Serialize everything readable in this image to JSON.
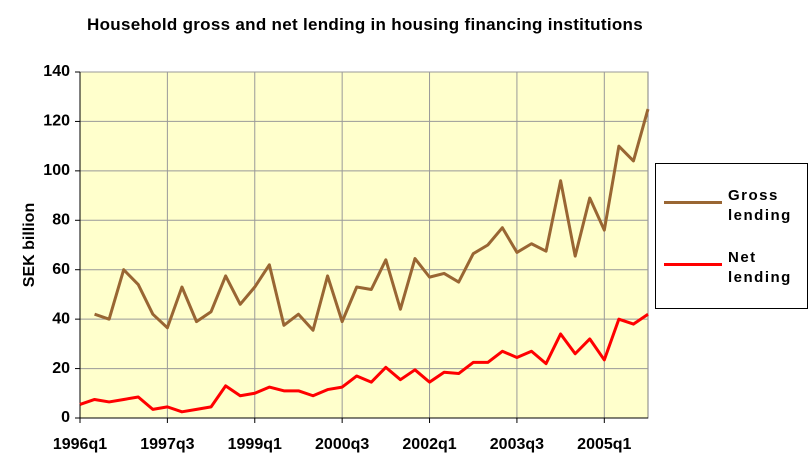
{
  "chart_data": {
    "type": "line",
    "title": "Household gross and net lending in housing financing institutions",
    "y_label": "SEK billion",
    "categories": [
      "1996q1",
      null,
      null,
      null,
      null,
      null,
      "1997q3",
      null,
      null,
      null,
      null,
      null,
      "1999q1",
      null,
      null,
      null,
      null,
      null,
      "2000q3",
      null,
      null,
      null,
      null,
      null,
      "2002q1",
      null,
      null,
      null,
      null,
      null,
      "2003q3",
      null,
      null,
      null,
      null,
      null,
      "2005q1",
      null,
      null,
      null
    ],
    "series": [
      {
        "name": "Gross lending",
        "color": "#996633",
        "values": [
          null,
          42,
          40,
          60,
          54,
          42,
          36.5,
          53,
          39,
          43,
          57.5,
          46,
          53,
          62,
          37.5,
          42,
          35.5,
          57.5,
          39,
          53,
          52,
          64,
          44,
          64.5,
          57,
          58.5,
          55,
          66.5,
          70,
          77,
          67,
          70.5,
          67.5,
          96,
          65.5,
          89,
          76,
          110,
          104,
          125
        ]
      },
      {
        "name": "Net lending",
        "color": "#ff0000",
        "values": [
          5.5,
          7.5,
          6.5,
          7.5,
          8.5,
          3.5,
          4.5,
          2.5,
          3.5,
          4.5,
          13,
          9,
          10,
          12.5,
          11,
          11,
          9,
          11.5,
          12.5,
          17,
          14.5,
          20.5,
          15.5,
          19.5,
          14.5,
          18.5,
          18,
          22.5,
          22.5,
          27,
          24.5,
          27,
          22,
          34,
          26,
          32,
          23.5,
          40,
          38,
          42
        ]
      }
    ],
    "ylim": [
      0,
      140
    ],
    "yticks": [
      0,
      20,
      40,
      60,
      80,
      100,
      120,
      140
    ],
    "grid": true,
    "legend": "right",
    "background": "#ffffcc"
  }
}
